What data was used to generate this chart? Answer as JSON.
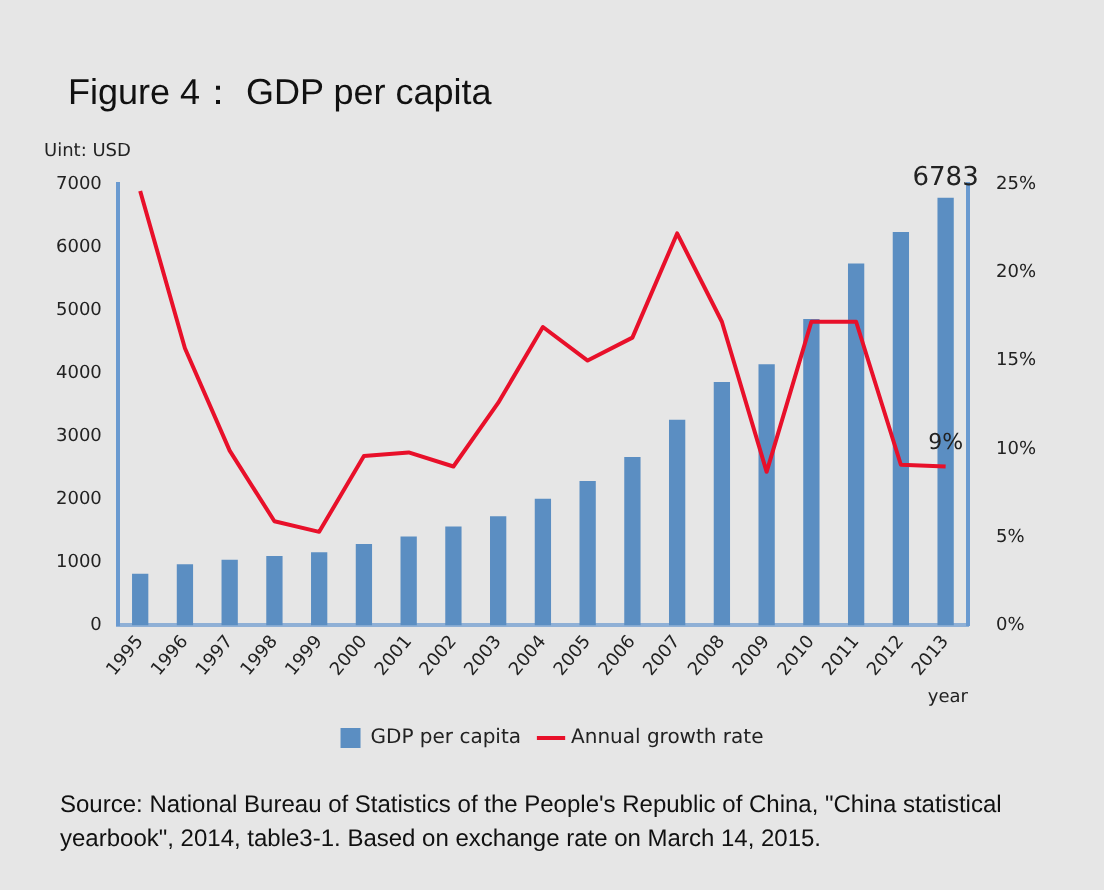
{
  "chart_data": {
    "type": "bar",
    "title": "Figure 4： GDP per capita",
    "ylabel": "Uint: USD",
    "xlabel": "year",
    "categories": [
      "1995",
      "1996",
      "1997",
      "1998",
      "1999",
      "2000",
      "2001",
      "2002",
      "2003",
      "2004",
      "2005",
      "2006",
      "2007",
      "2008",
      "2009",
      "2010",
      "2011",
      "2012",
      "2013"
    ],
    "series": [
      {
        "name": "GDP per capita",
        "color": "#5b8ec2",
        "values": [
          820,
          970,
          1040,
          1100,
          1160,
          1290,
          1410,
          1570,
          1730,
          2010,
          2290,
          2670,
          3260,
          3860,
          4140,
          4860,
          5740,
          6240,
          6783
        ],
        "value_labels": [
          null,
          null,
          null,
          null,
          null,
          null,
          null,
          null,
          null,
          null,
          null,
          null,
          null,
          null,
          null,
          null,
          null,
          null,
          "6783"
        ]
      },
      {
        "name": "Annual growth rate",
        "type": "line",
        "axis": "y2",
        "color": "#e8102a",
        "values": [
          24.6,
          15.7,
          9.9,
          5.9,
          5.3,
          9.6,
          9.8,
          9.0,
          12.6,
          16.9,
          15.0,
          16.3,
          22.2,
          17.2,
          8.7,
          17.2,
          17.2,
          9.1,
          9.0
        ],
        "value_labels": [
          null,
          null,
          null,
          null,
          null,
          null,
          null,
          null,
          null,
          null,
          null,
          null,
          null,
          null,
          null,
          null,
          null,
          null,
          "9%"
        ]
      }
    ],
    "ylim": [
      0,
      7000
    ],
    "yticks": [
      0,
      1000,
      2000,
      3000,
      4000,
      5000,
      6000,
      7000
    ],
    "y2lim": [
      0,
      25
    ],
    "y2ticks": [
      {
        "value": 0,
        "label": "0%"
      },
      {
        "value": 5,
        "label": "5%"
      },
      {
        "value": 10,
        "label": "10%"
      },
      {
        "value": 15,
        "label": "15%"
      },
      {
        "value": 20,
        "label": "20%"
      },
      {
        "value": 25,
        "label": "25%"
      }
    ],
    "grid": false,
    "legend": "bottom",
    "marker": "none",
    "annotations": [
      "Source: National Bureau of Statistics of the People's Republic of China, \"China statistical yearbook\", 2014, table3-1. Based on exchange rate on March 14, 2015."
    ]
  }
}
